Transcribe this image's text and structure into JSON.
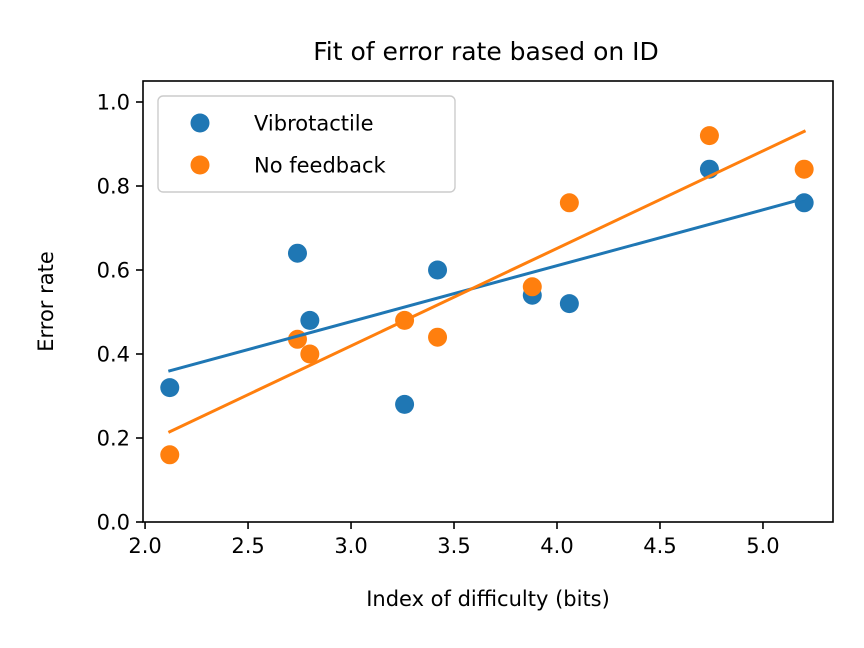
{
  "chart_data": {
    "type": "scatter",
    "title": "Fit of error rate based on ID",
    "xlabel": "Index of difficulty (bits)",
    "ylabel": "Error rate",
    "xlim": [
      1.99,
      5.34
    ],
    "ylim": [
      0.0,
      1.05
    ],
    "x_ticks": [
      2.0,
      2.5,
      3.0,
      3.5,
      4.0,
      4.5,
      5.0
    ],
    "x_tick_labels": [
      "2.0",
      "2.5",
      "3.0",
      "3.5",
      "4.0",
      "4.5",
      "5.0"
    ],
    "y_ticks": [
      0.0,
      0.2,
      0.4,
      0.6,
      0.8,
      1.0
    ],
    "y_tick_labels": [
      "0.0",
      "0.2",
      "0.4",
      "0.6",
      "0.8",
      "1.0"
    ],
    "grid": false,
    "legend_position": "top-left",
    "series": [
      {
        "name": "Vibrotactile",
        "color": "#1f77b4",
        "x": [
          2.12,
          2.74,
          2.8,
          3.26,
          3.42,
          3.88,
          4.06,
          4.74,
          5.2
        ],
        "y": [
          0.32,
          0.64,
          0.48,
          0.28,
          0.6,
          0.54,
          0.52,
          0.84,
          0.76
        ],
        "fit": {
          "x": [
            2.12,
            5.2
          ],
          "y": [
            0.36,
            0.77
          ]
        }
      },
      {
        "name": "No feedback",
        "color": "#ff7f0e",
        "x": [
          2.12,
          2.74,
          2.8,
          3.26,
          3.42,
          3.88,
          4.06,
          4.74,
          5.2
        ],
        "y": [
          0.16,
          0.435,
          0.4,
          0.48,
          0.44,
          0.56,
          0.76,
          0.92,
          0.84
        ],
        "fit": {
          "x": [
            2.12,
            5.2
          ],
          "y": [
            0.215,
            0.93
          ]
        }
      }
    ]
  }
}
